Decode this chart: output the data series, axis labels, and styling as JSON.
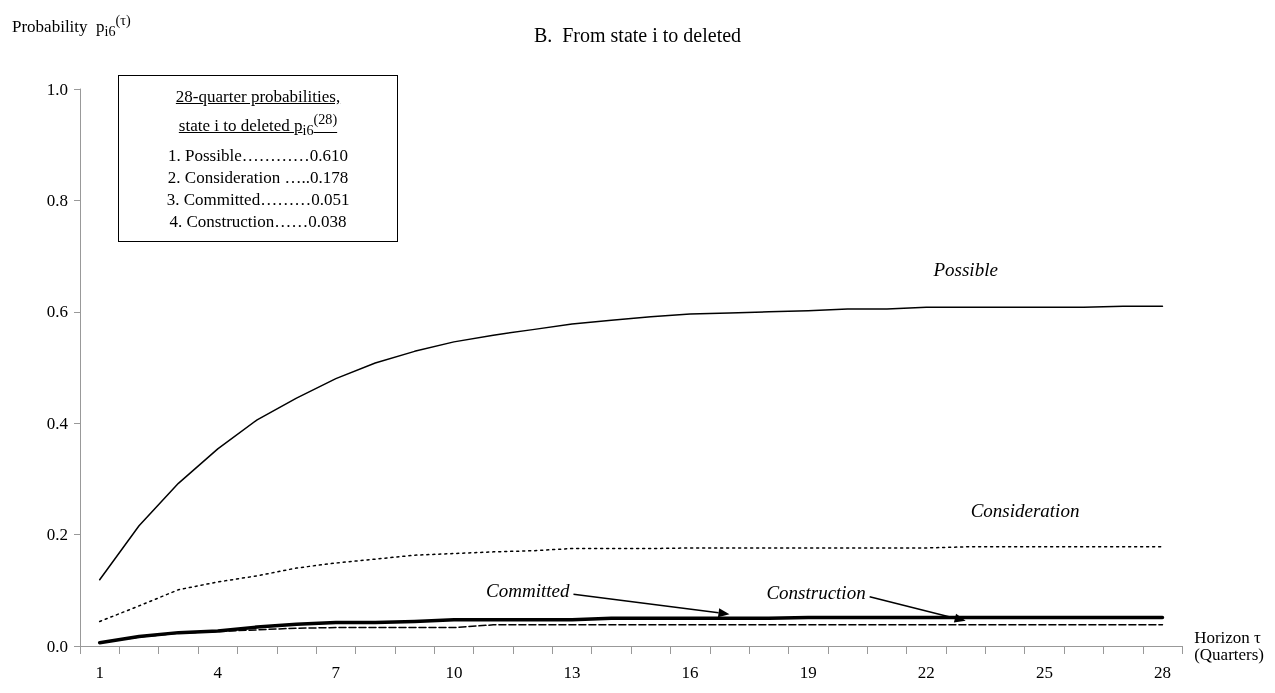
{
  "chart_data": {
    "type": "line",
    "title": "B.  From state i to deleted",
    "ylabel": "Probability  p$_{i6}$$^{(τ)}$",
    "xlabel": "Horizon τ\n(Quarters)",
    "categories": [
      "1",
      null,
      null,
      "4",
      null,
      null,
      "7",
      null,
      null,
      "10",
      null,
      null,
      "13",
      null,
      null,
      "16",
      null,
      null,
      "19",
      null,
      null,
      "22",
      null,
      null,
      "25",
      null,
      null,
      "28"
    ],
    "series": [
      {
        "name": "Possible",
        "color": "#000000",
        "line_style": "solid",
        "values": [
          0.119,
          0.216,
          0.292,
          0.354,
          0.406,
          0.445,
          0.48,
          0.508,
          0.529,
          0.546,
          0.558,
          0.568,
          0.578,
          0.585,
          0.591,
          0.596,
          0.598,
          0.6,
          0.602,
          0.605,
          0.605,
          0.608,
          0.608,
          0.608,
          0.608,
          0.608,
          0.61,
          0.61
        ]
      },
      {
        "name": "Consideration",
        "color": "#000000",
        "line_style": "dotted",
        "values": [
          0.044,
          0.072,
          0.101,
          0.115,
          0.126,
          0.14,
          0.149,
          0.156,
          0.163,
          0.166,
          0.169,
          0.171,
          0.175,
          0.175,
          0.175,
          0.176,
          0.176,
          0.176,
          0.176,
          0.176,
          0.176,
          0.176,
          0.178,
          0.178,
          0.178,
          0.178,
          0.178,
          0.178
        ]
      },
      {
        "name": "Committed",
        "color": "#000000",
        "line_style": "solid",
        "values": [
          0.006,
          0.017,
          0.024,
          0.027,
          0.034,
          0.039,
          0.042,
          0.042,
          0.044,
          0.047,
          0.047,
          0.047,
          0.047,
          0.05,
          0.05,
          0.05,
          0.05,
          0.05,
          0.051,
          0.051,
          0.051,
          0.051,
          0.051,
          0.051,
          0.051,
          0.051,
          0.051,
          0.051
        ]
      },
      {
        "name": "Construction",
        "color": "#000000",
        "line_style": "dashed",
        "values": [
          0.006,
          0.016,
          0.023,
          0.026,
          0.029,
          0.032,
          0.033,
          0.033,
          0.033,
          0.033,
          0.038,
          0.038,
          0.038,
          0.038,
          0.038,
          0.038,
          0.038,
          0.038,
          0.038,
          0.038,
          0.038,
          0.038,
          0.038,
          0.038,
          0.038,
          0.038,
          0.038,
          0.038
        ]
      }
    ],
    "ylim": [
      0,
      1
    ],
    "yticks": [
      {
        "value": 0,
        "label": "0.0"
      },
      0.2,
      0.4,
      0.6,
      0.8,
      {
        "value": 1,
        "label": "1.0"
      }
    ],
    "grid": false,
    "legend": false,
    "marker": "none",
    "annotations": [
      "28-quarter probabilities,",
      "state i to deleted p$_{i6}$$^{(28)}$",
      "1. Possible…………0.610",
      "2. Consideration …..0.178",
      "3. Committed………0.051",
      "4. Construction……0.038"
    ]
  }
}
